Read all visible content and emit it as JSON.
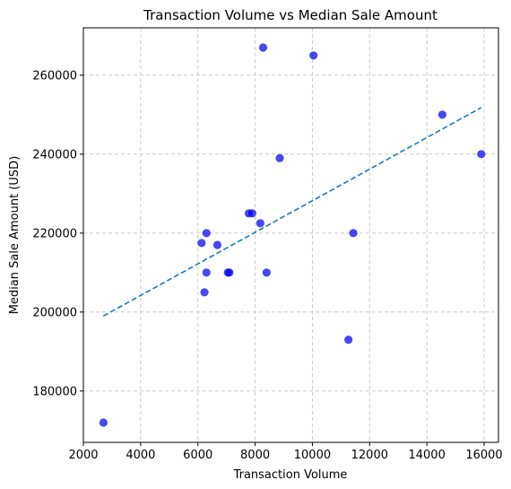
{
  "chart_data": {
    "type": "scatter",
    "title": "Transaction Volume vs Median Sale Amount",
    "xlabel": "Transaction Volume",
    "ylabel": "Median Sale Amount (USD)",
    "xlim": [
      2000,
      16500
    ],
    "ylim": [
      167000,
      272000
    ],
    "xticks": [
      2000,
      4000,
      6000,
      8000,
      10000,
      12000,
      14000,
      16000
    ],
    "yticks": [
      180000,
      200000,
      220000,
      240000,
      260000
    ],
    "grid": true,
    "grid_style": "dashed",
    "point_color": "#0000ee",
    "trend_color": "#1f77b4",
    "series": [
      {
        "points": [
          [
            2700,
            172000
          ],
          [
            6130,
            217500
          ],
          [
            6230,
            205000
          ],
          [
            6300,
            220000
          ],
          [
            6300,
            210000
          ],
          [
            6680,
            217000
          ],
          [
            7050,
            210000
          ],
          [
            7100,
            210000
          ],
          [
            7780,
            225000
          ],
          [
            7900,
            225000
          ],
          [
            8180,
            222500
          ],
          [
            8280,
            267000
          ],
          [
            8400,
            210000
          ],
          [
            8860,
            239000
          ],
          [
            10040,
            265000
          ],
          [
            11260,
            193000
          ],
          [
            11430,
            220000
          ],
          [
            14540,
            250000
          ],
          [
            15900,
            240000
          ]
        ]
      }
    ],
    "trend_line": {
      "x": [
        2700,
        15900
      ],
      "y": [
        199000,
        251800
      ]
    }
  }
}
